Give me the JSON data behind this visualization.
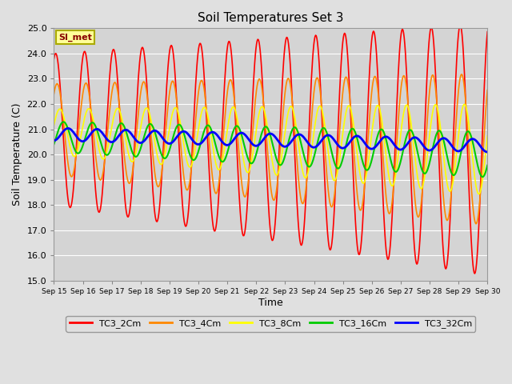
{
  "title": "Soil Temperatures Set 3",
  "xlabel": "Time",
  "ylabel": "Soil Temperature (C)",
  "ylim": [
    15.0,
    25.0
  ],
  "yticks": [
    15.0,
    16.0,
    17.0,
    18.0,
    19.0,
    20.0,
    21.0,
    22.0,
    23.0,
    24.0,
    25.0
  ],
  "xtick_labels": [
    "Sep 15",
    "Sep 16",
    "Sep 17",
    "Sep 18",
    "Sep 19",
    "Sep 20",
    "Sep 21",
    "Sep 22",
    "Sep 23",
    "Sep 24",
    "Sep 25",
    "Sep 26",
    "Sep 27",
    "Sep 28",
    "Sep 29",
    "Sep 30"
  ],
  "legend_label": "SI_met",
  "series_labels": [
    "TC3_2Cm",
    "TC3_4Cm",
    "TC3_8Cm",
    "TC3_16Cm",
    "TC3_32Cm"
  ],
  "series_colors": [
    "#ff0000",
    "#ff8800",
    "#ffff00",
    "#00cc00",
    "#0000ff"
  ],
  "line_widths": [
    1.2,
    1.2,
    1.2,
    1.5,
    2.0
  ],
  "bg_color": "#e0e0e0",
  "plot_bg_color": "#d4d4d4",
  "grid_color": "#ffffff",
  "n_days": 15,
  "pts_per_day": 48
}
